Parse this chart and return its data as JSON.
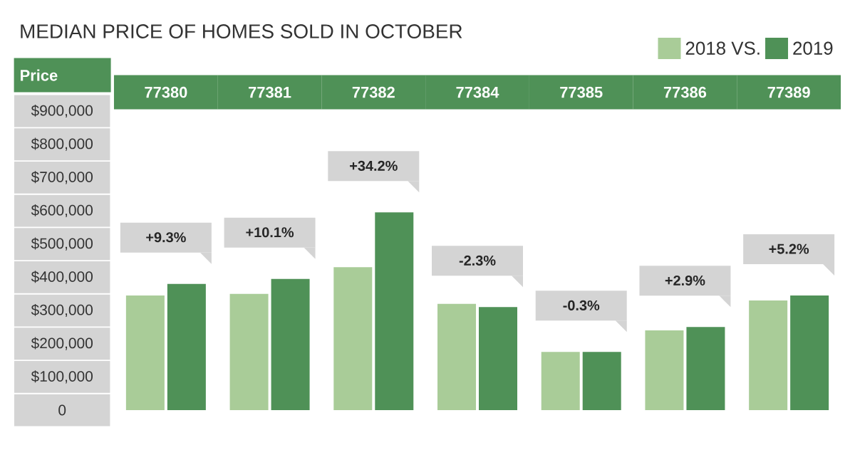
{
  "chart_data": {
    "type": "bar",
    "title": "MEDIAN PRICE OF HOMES SOLD IN OCTOBER",
    "ylabel": "Price",
    "categories": [
      "77380",
      "77381",
      "77382",
      "77384",
      "77385",
      "77386",
      "77389"
    ],
    "series": [
      {
        "name": "2018 VS.",
        "color": "#a9cc98",
        "values": [
          345000,
          350000,
          430000,
          320000,
          175000,
          240000,
          330000
        ]
      },
      {
        "name": "2019",
        "color": "#4f9157",
        "values": [
          380000,
          395000,
          595000,
          310000,
          175000,
          250000,
          345000
        ]
      }
    ],
    "ylim": [
      0,
      900000
    ],
    "yticks": [
      {
        "value": 0,
        "label": "0"
      },
      {
        "value": 100000,
        "label": "$100,000"
      },
      {
        "value": 200000,
        "label": "$200,000"
      },
      {
        "value": 300000,
        "label": "$300,000"
      },
      {
        "value": 400000,
        "label": "$400,000"
      },
      {
        "value": 500000,
        "label": "$500,000"
      },
      {
        "value": 600000,
        "label": "$600,000"
      },
      {
        "value": 700000,
        "label": "$700,000"
      },
      {
        "value": 800000,
        "label": "$800,000"
      },
      {
        "value": 900000,
        "label": "$900,000"
      }
    ],
    "annotations": [
      {
        "text": "+9.3%",
        "x": "77380",
        "y": 380000
      },
      {
        "text": "+10.1%",
        "x": "77381",
        "y": 395000
      },
      {
        "text": "+34.2%",
        "x": "77382",
        "y": 595000
      },
      {
        "text": "-2.3%",
        "x": "77384",
        "y": 310000
      },
      {
        "text": "-0.3%",
        "x": "77385",
        "y": 175000
      },
      {
        "text": "+2.9%",
        "x": "77386",
        "y": 250000
      },
      {
        "text": "+5.2%",
        "x": "77389",
        "y": 345000
      }
    ],
    "legend": "top right",
    "grid": false
  }
}
